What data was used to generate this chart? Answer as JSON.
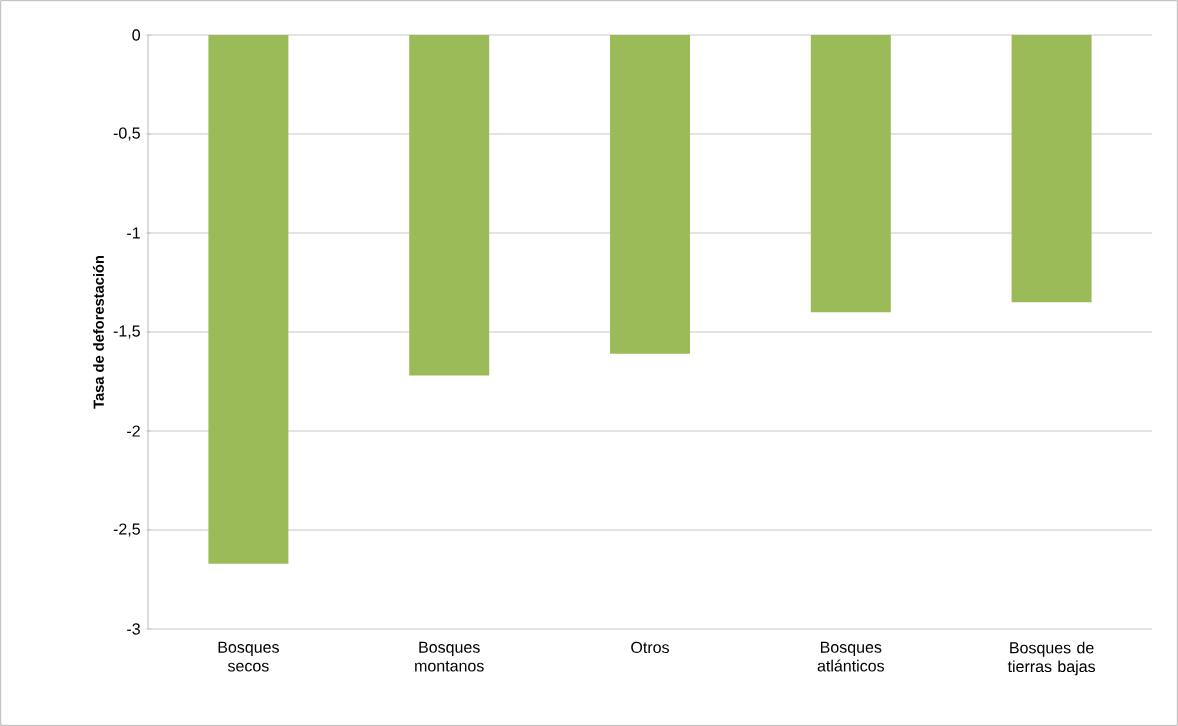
{
  "chart_data": {
    "type": "bar",
    "ylabel": "Tasa de deforestación",
    "categories": [
      "Bosques secos",
      "Bosques montanos",
      "Otros",
      "Bosques atlánticos",
      "Bosques de tierras bajas"
    ],
    "values": [
      -2.67,
      -1.72,
      -1.61,
      -1.4,
      -1.35
    ],
    "color": "#9bbb59",
    "ylim": [
      -3,
      0
    ],
    "yticks": [
      {
        "value": -3,
        "label": "-3"
      },
      {
        "value": -2.5,
        "label": "-2,5"
      },
      {
        "value": -2,
        "label": "-2"
      },
      {
        "value": -1.5,
        "label": "-1,5"
      },
      {
        "value": -1,
        "label": "-1"
      },
      {
        "value": -0.5,
        "label": "-0,5"
      },
      {
        "value": 0,
        "label": "0"
      }
    ],
    "grid": "y"
  }
}
